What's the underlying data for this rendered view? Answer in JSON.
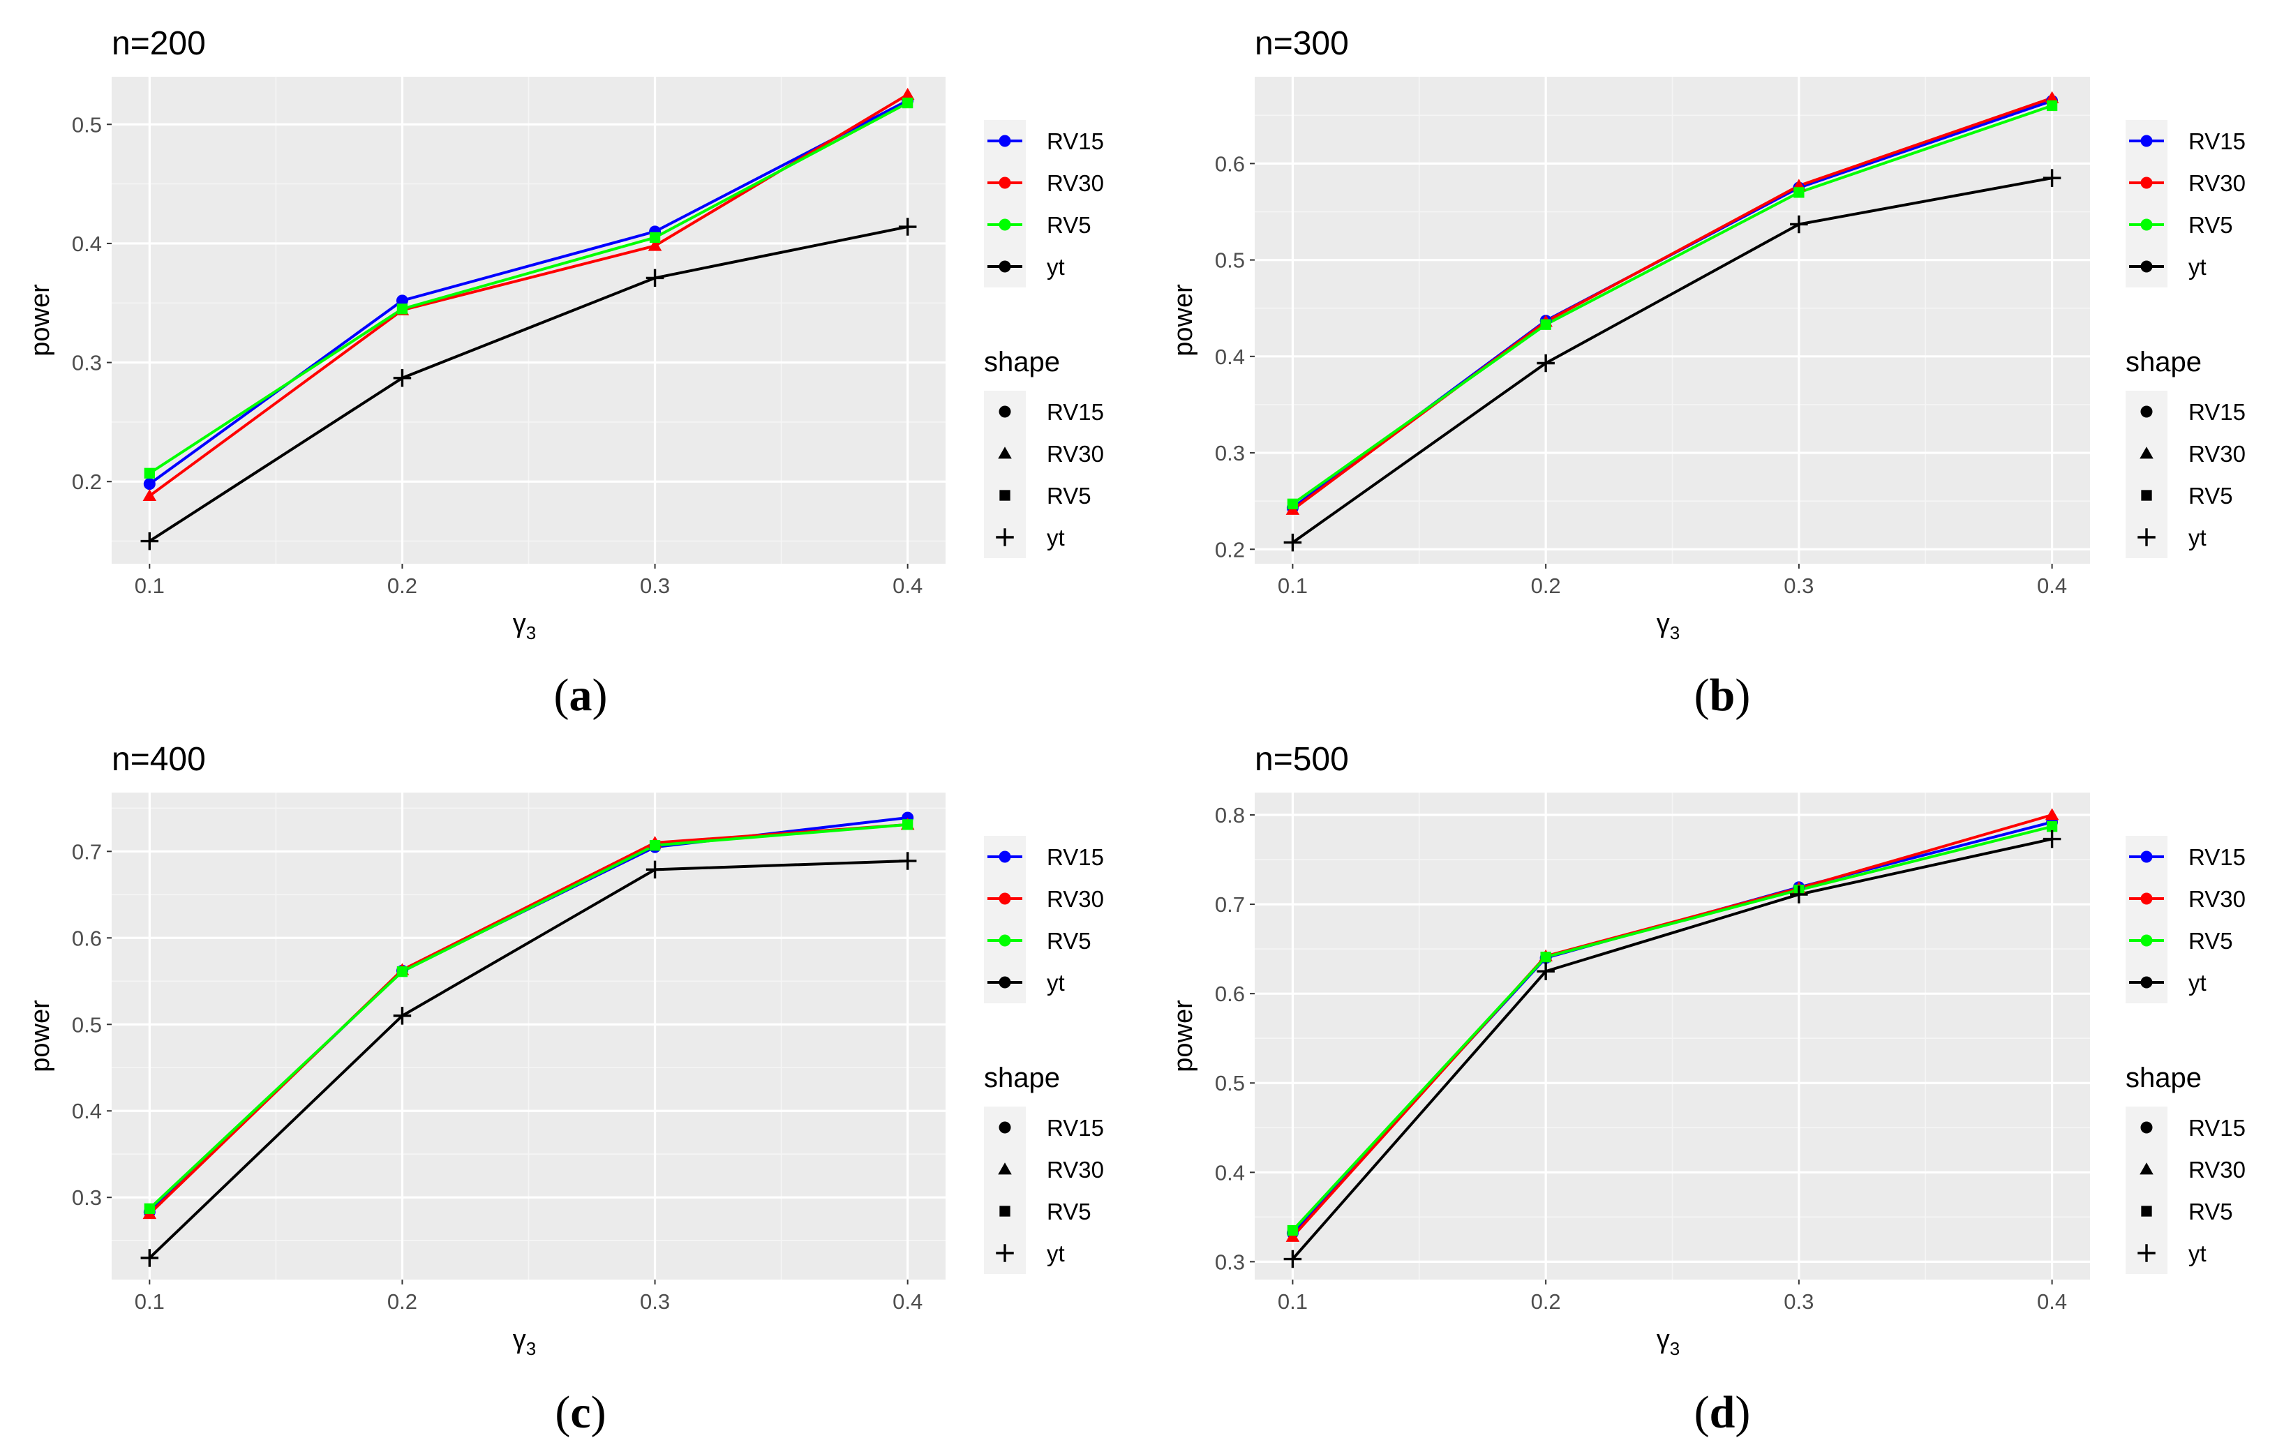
{
  "chart_data": [
    {
      "type": "line",
      "title": "n=200",
      "caption_letter": "a",
      "xlabel": "γ",
      "xlabel_subscript": "3",
      "ylabel": "power",
      "x": [
        0.1,
        0.2,
        0.3,
        0.4
      ],
      "x_tick_labels": [
        "0.1",
        "0.2",
        "0.3",
        "0.4"
      ],
      "xlim": [
        0.085,
        0.415
      ],
      "ylim": [
        0.131,
        0.54
      ],
      "y_ticks": [
        0.2,
        0.3,
        0.4,
        0.5
      ],
      "y_tick_labels": [
        "0.2",
        "0.3",
        "0.4",
        "0.5"
      ],
      "series": [
        {
          "name": "RV15",
          "values": [
            0.198,
            0.352,
            0.41,
            0.52
          ]
        },
        {
          "name": "RV30",
          "values": [
            0.188,
            0.344,
            0.398,
            0.525
          ]
        },
        {
          "name": "RV5",
          "values": [
            0.207,
            0.345,
            0.405,
            0.518
          ]
        },
        {
          "name": "yt",
          "values": [
            0.15,
            0.287,
            0.371,
            0.414
          ]
        }
      ]
    },
    {
      "type": "line",
      "title": "n=300",
      "caption_letter": "b",
      "xlabel": "γ",
      "xlabel_subscript": "3",
      "ylabel": "power",
      "x": [
        0.1,
        0.2,
        0.3,
        0.4
      ],
      "x_tick_labels": [
        "0.1",
        "0.2",
        "0.3",
        "0.4"
      ],
      "xlim": [
        0.085,
        0.415
      ],
      "ylim": [
        0.185,
        0.69
      ],
      "y_ticks": [
        0.2,
        0.3,
        0.4,
        0.5,
        0.6
      ],
      "y_tick_labels": [
        "0.2",
        "0.3",
        "0.4",
        "0.5",
        "0.6"
      ],
      "series": [
        {
          "name": "RV15",
          "values": [
            0.243,
            0.437,
            0.575,
            0.665
          ]
        },
        {
          "name": "RV30",
          "values": [
            0.241,
            0.436,
            0.577,
            0.668
          ]
        },
        {
          "name": "RV5",
          "values": [
            0.247,
            0.433,
            0.57,
            0.66
          ]
        },
        {
          "name": "yt",
          "values": [
            0.207,
            0.393,
            0.537,
            0.585
          ]
        }
      ]
    },
    {
      "type": "line",
      "title": "n=400",
      "caption_letter": "c",
      "xlabel": "γ",
      "xlabel_subscript": "3",
      "ylabel": "power",
      "x": [
        0.1,
        0.2,
        0.3,
        0.4
      ],
      "x_tick_labels": [
        "0.1",
        "0.2",
        "0.3",
        "0.4"
      ],
      "xlim": [
        0.085,
        0.415
      ],
      "ylim": [
        0.205,
        0.768
      ],
      "y_ticks": [
        0.3,
        0.4,
        0.5,
        0.6,
        0.7
      ],
      "y_tick_labels": [
        "0.3",
        "0.4",
        "0.5",
        "0.6",
        "0.7"
      ],
      "series": [
        {
          "name": "RV15",
          "values": [
            0.283,
            0.562,
            0.705,
            0.739
          ]
        },
        {
          "name": "RV30",
          "values": [
            0.281,
            0.563,
            0.71,
            0.731
          ]
        },
        {
          "name": "RV5",
          "values": [
            0.287,
            0.561,
            0.707,
            0.731
          ]
        },
        {
          "name": "yt",
          "values": [
            0.23,
            0.51,
            0.679,
            0.689
          ]
        }
      ]
    },
    {
      "type": "line",
      "title": "n=500",
      "caption_letter": "d",
      "xlabel": "γ",
      "xlabel_subscript": "3",
      "ylabel": "power",
      "x": [
        0.1,
        0.2,
        0.3,
        0.4
      ],
      "x_tick_labels": [
        "0.1",
        "0.2",
        "0.3",
        "0.4"
      ],
      "xlim": [
        0.085,
        0.415
      ],
      "ylim": [
        0.28,
        0.825
      ],
      "y_ticks": [
        0.3,
        0.4,
        0.5,
        0.6,
        0.7,
        0.8
      ],
      "y_tick_labels": [
        "0.3",
        "0.4",
        "0.5",
        "0.6",
        "0.7",
        "0.8"
      ],
      "series": [
        {
          "name": "RV15",
          "values": [
            0.332,
            0.64,
            0.719,
            0.792
          ]
        },
        {
          "name": "RV30",
          "values": [
            0.328,
            0.642,
            0.718,
            0.8
          ]
        },
        {
          "name": "RV5",
          "values": [
            0.335,
            0.641,
            0.716,
            0.787
          ]
        },
        {
          "name": "yt",
          "values": [
            0.303,
            0.625,
            0.711,
            0.773
          ]
        }
      ]
    }
  ],
  "legend": {
    "color_entries": [
      {
        "name": "RV15",
        "color": "#0000ff"
      },
      {
        "name": "RV30",
        "color": "#ff0000"
      },
      {
        "name": "RV5",
        "color": "#00ff00"
      },
      {
        "name": "yt",
        "color": "#000000"
      }
    ],
    "shape_title": "shape",
    "shape_entries": [
      {
        "name": "RV15",
        "shape": "circle"
      },
      {
        "name": "RV30",
        "shape": "triangle"
      },
      {
        "name": "RV5",
        "shape": "square"
      },
      {
        "name": "yt",
        "shape": "plus"
      }
    ]
  },
  "style": {
    "panel_bg": "#ebebeb",
    "grid_major": "#ffffff",
    "grid_minor": "#f5f5f5",
    "legend_key_bg": "#f2f2f2",
    "tick_color": "#333333",
    "tick_label_color": "#4d4d4d"
  }
}
